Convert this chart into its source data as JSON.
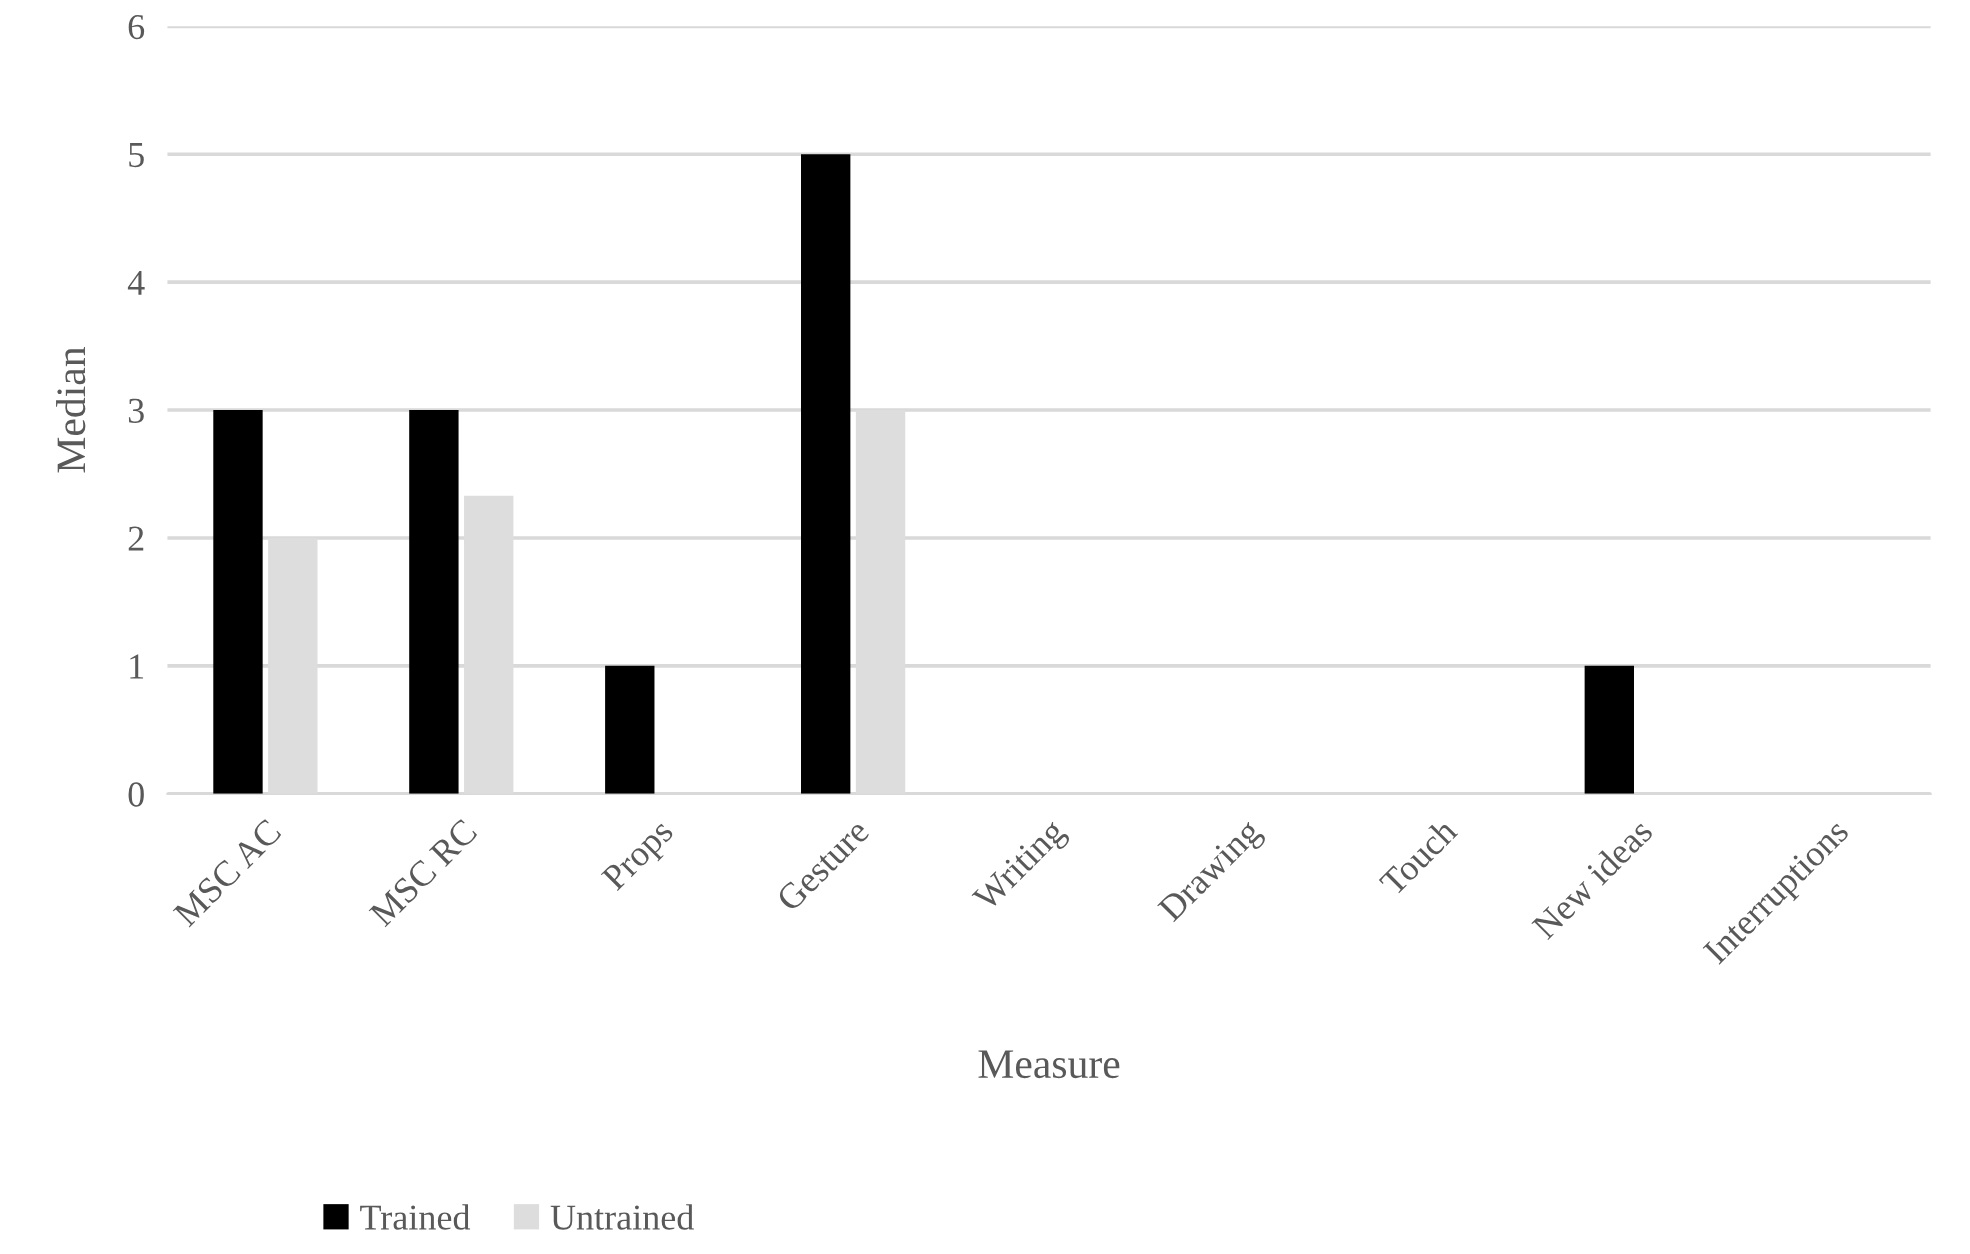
{
  "chart_data": {
    "type": "bar",
    "xlabel": "Measure",
    "ylabel": "Median",
    "categories": [
      "MSC AC",
      "MSC RC",
      "Props",
      "Gesture",
      "Writing",
      "Drawing",
      "Touch",
      "New ideas",
      "Interruptions"
    ],
    "series": [
      {
        "name": "Trained",
        "color": "#000000",
        "values": [
          3,
          3,
          1,
          5,
          0,
          0,
          0,
          1,
          0
        ]
      },
      {
        "name": "Untrained",
        "color": "#dddddd",
        "values": [
          2,
          2.33,
          0,
          3,
          0,
          0,
          0,
          0,
          0
        ]
      }
    ],
    "ylim": [
      0,
      6
    ],
    "yticks": [
      0,
      1,
      2,
      3,
      4,
      5,
      6
    ],
    "grid": "y",
    "legend": "bottom"
  }
}
